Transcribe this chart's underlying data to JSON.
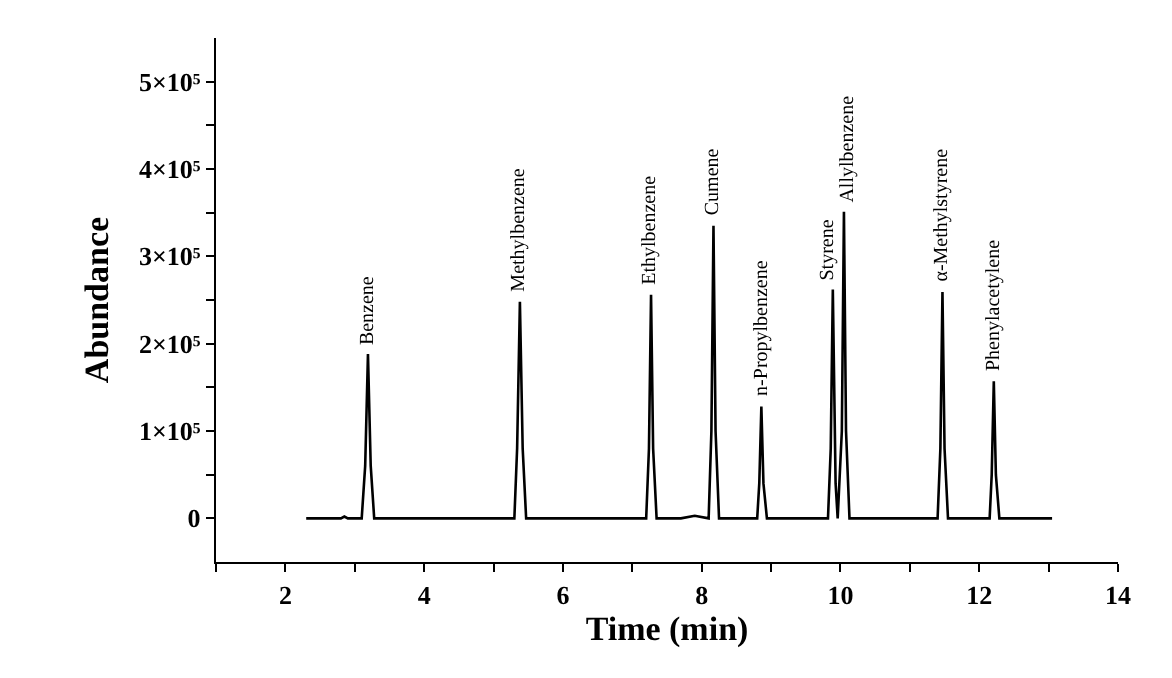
{
  "chart_data": {
    "type": "line",
    "xlabel": "Time (min)",
    "ylabel": "Abundance",
    "x": [
      2.3,
      2.8,
      2.85,
      2.9,
      3.1,
      3.15,
      3.19,
      3.23,
      3.28,
      5.3,
      5.34,
      5.38,
      5.42,
      5.47,
      7.2,
      7.24,
      7.27,
      7.3,
      7.35,
      7.7,
      7.9,
      8.1,
      8.14,
      8.17,
      8.2,
      8.25,
      8.8,
      8.83,
      8.86,
      8.89,
      8.94,
      9.82,
      9.86,
      9.89,
      9.93,
      9.96,
      10.02,
      10.05,
      10.08,
      10.13,
      11.4,
      11.44,
      11.47,
      11.5,
      11.55,
      12.15,
      12.18,
      12.21,
      12.24,
      12.29,
      13.05
    ],
    "series": [
      {
        "color": "#000000",
        "values": [
          0,
          0,
          2000,
          0,
          0,
          60000,
          188000,
          60000,
          0,
          0,
          80000,
          248000,
          80000,
          0,
          0,
          80000,
          256000,
          80000,
          0,
          0,
          3000,
          0,
          100000,
          335000,
          100000,
          0,
          0,
          40000,
          128000,
          40000,
          0,
          0,
          80000,
          262000,
          40000,
          0,
          100000,
          351000,
          100000,
          0,
          0,
          80000,
          259000,
          80000,
          0,
          0,
          50000,
          157000,
          50000,
          0,
          0
        ]
      }
    ],
    "xlim": [
      1,
      14
    ],
    "ylim": [
      -50000,
      550000
    ],
    "xticks": [
      {
        "value": 1,
        "label": null
      },
      2,
      {
        "value": 3,
        "label": null
      },
      4,
      {
        "value": 5,
        "label": null
      },
      6,
      {
        "value": 7,
        "label": null
      },
      8,
      {
        "value": 9,
        "label": null
      },
      10,
      {
        "value": 11,
        "label": null
      },
      12,
      {
        "value": 13,
        "label": null
      },
      14
    ],
    "yticks": [
      {
        "value": 0,
        "label": "0"
      },
      {
        "value": 50000,
        "label": null
      },
      {
        "value": 100000,
        "label": "1×10⁵"
      },
      {
        "value": 150000,
        "label": null
      },
      {
        "value": 200000,
        "label": "2×10⁵"
      },
      {
        "value": 250000,
        "label": null
      },
      {
        "value": 300000,
        "label": "3×10⁵"
      },
      {
        "value": 350000,
        "label": null
      },
      {
        "value": 400000,
        "label": "4×10⁵"
      },
      {
        "value": 450000,
        "label": null
      },
      {
        "value": 500000,
        "label": "5×10⁵"
      }
    ],
    "annotations": [
      {
        "text": "Benzene",
        "x": 3.19,
        "y": 188000
      },
      {
        "text": "Methylbenzene",
        "x": 5.38,
        "y": 248000
      },
      {
        "text": "Ethylbenzene",
        "x": 7.27,
        "y": 256000
      },
      {
        "text": "Cumene",
        "x": 8.17,
        "y": 335000
      },
      {
        "text": "n-Propylbenzene",
        "x": 8.86,
        "y": 128000
      },
      {
        "text": "Styrene",
        "x": 9.82,
        "y": 262000
      },
      {
        "text": "Allylbenzene",
        "x": 10.12,
        "y": 351000
      },
      {
        "text": "α-Methylstyrene",
        "x": 11.47,
        "y": 259000
      },
      {
        "text": "Phenylacetylene",
        "x": 12.21,
        "y": 157000
      }
    ],
    "marker": "none",
    "line_style": "solid"
  }
}
